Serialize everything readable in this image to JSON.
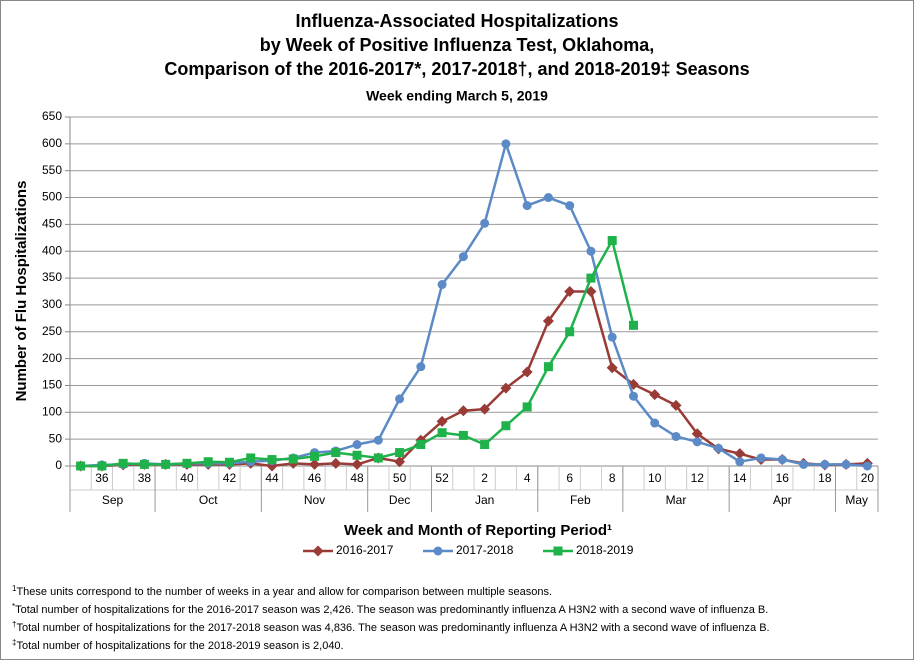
{
  "chart_data": {
    "type": "line",
    "title": [
      "Influenza-Associated Hospitalizations",
      "by Week of Positive Influenza Test, Oklahoma,",
      "Comparison of the 2016-2017*, 2017-2018†, and 2018-2019‡ Seasons"
    ],
    "subtitle": "Week ending March 5, 2019",
    "y_label": "Number of Flu Hospitalizations",
    "x_label": "Week and Month of Reporting Period¹",
    "categories": [
      null,
      "36",
      null,
      "38",
      null,
      "40",
      null,
      "42",
      null,
      "44",
      null,
      "46",
      null,
      "48",
      null,
      "50",
      null,
      "52",
      null,
      "2",
      null,
      "4",
      null,
      "6",
      null,
      "8",
      null,
      "10",
      null,
      "12",
      null,
      "14",
      null,
      "16",
      null,
      "18",
      null,
      "20"
    ],
    "month_groups": [
      {
        "label": "Sep",
        "span": 4
      },
      {
        "label": "Oct",
        "span": 5
      },
      {
        "label": "Nov",
        "span": 5
      },
      {
        "label": "Dec",
        "span": 3
      },
      {
        "label": "Jan",
        "span": 5
      },
      {
        "label": "Feb",
        "span": 4
      },
      {
        "label": "Mar",
        "span": 5
      },
      {
        "label": "Apr",
        "span": 5
      },
      {
        "label": "May",
        "span": 2
      }
    ],
    "series": [
      {
        "name": "2016-2017",
        "color": "#993b36",
        "marker": "diamond",
        "values": [
          0,
          0,
          2,
          3,
          3,
          3,
          3,
          3,
          5,
          0,
          5,
          3,
          5,
          3,
          15,
          8,
          48,
          83,
          103,
          106,
          145,
          175,
          270,
          325,
          325,
          183,
          152,
          133,
          113,
          60,
          32,
          23,
          12,
          12,
          5,
          2,
          3,
          5
        ]
      },
      {
        "name": "2017-2018",
        "color": "#5b8ac6",
        "marker": "circle",
        "values": [
          0,
          2,
          3,
          5,
          3,
          5,
          5,
          5,
          8,
          10,
          15,
          25,
          28,
          40,
          48,
          125,
          185,
          338,
          390,
          452,
          600,
          485,
          500,
          485,
          400,
          240,
          130,
          80,
          55,
          45,
          33,
          8,
          15,
          12,
          3,
          3,
          3,
          0
        ]
      },
      {
        "name": "2018-2019",
        "color": "#1fb24b",
        "marker": "square",
        "values": [
          0,
          0,
          5,
          3,
          3,
          5,
          8,
          7,
          15,
          12,
          13,
          18,
          25,
          20,
          15,
          25,
          40,
          62,
          57,
          40,
          75,
          110,
          185,
          250,
          350,
          420,
          262,
          null,
          null,
          null,
          null,
          null,
          null,
          null,
          null,
          null,
          null,
          null
        ]
      }
    ],
    "ylim": [
      0,
      650
    ],
    "yticks": [
      0,
      50,
      100,
      150,
      200,
      250,
      300,
      350,
      400,
      450,
      500,
      550,
      600,
      650
    ],
    "grid": true,
    "legend": "bottom",
    "footnotes": [
      {
        "mark": "1",
        "text": "These units correspond to the number of weeks in a year and allow for comparison between multiple seasons."
      },
      {
        "mark": "*",
        "text": "Total number of hospitalizations for the 2016-2017 season was 2,426.  The season was predominantly influenza A H3N2 with a second wave of influenza B."
      },
      {
        "mark": "†",
        "text": "Total number of hospitalizations for the 2017-2018 season was 4,836.  The season was predominantly influenza A H3N2 with a second wave of influenza B."
      },
      {
        "mark": "‡",
        "text": "Total number of hospitalizations for the 2018-2019 season is 2,040."
      }
    ]
  }
}
